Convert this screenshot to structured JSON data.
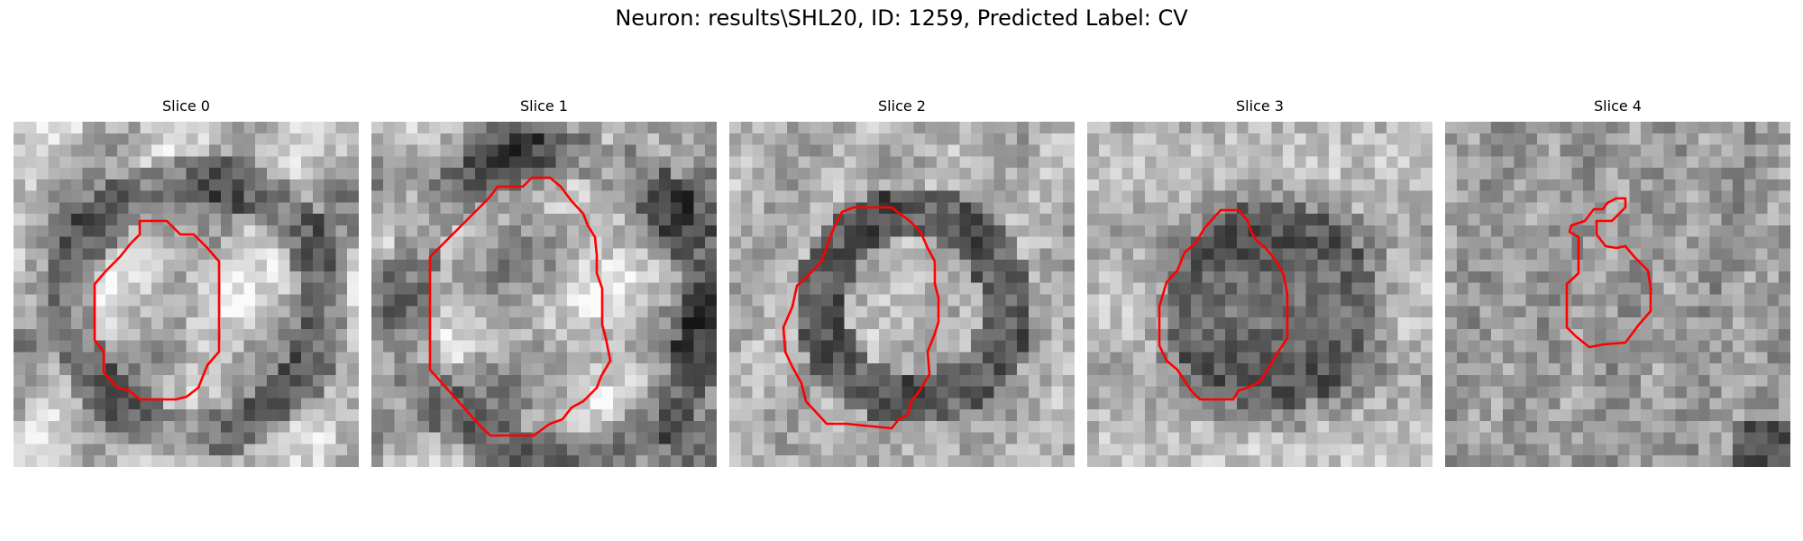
{
  "figure": {
    "suptitle": "Neuron: results\\SHL20, ID: 1259, Predicted Label: CV"
  },
  "panels": [
    {
      "title": "Slice 0"
    },
    {
      "title": "Slice 1"
    },
    {
      "title": "Slice 2"
    },
    {
      "title": "Slice 3"
    },
    {
      "title": "Slice 4"
    }
  ],
  "colors": {
    "contour": "#ff0000",
    "background": "#ffffff"
  }
}
